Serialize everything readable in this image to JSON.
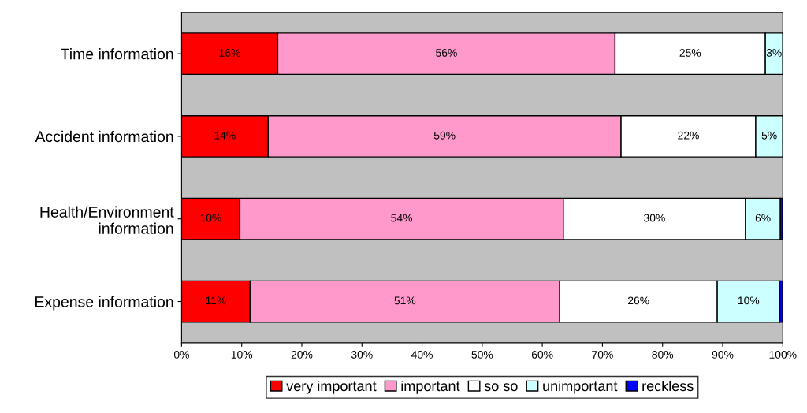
{
  "chart_data": {
    "type": "bar",
    "orientation": "horizontal",
    "stacked": true,
    "categories": [
      "Time information",
      "Accident information",
      "Health/Environment\ninformation",
      "Expense information"
    ],
    "series": [
      {
        "name": "very important",
        "color": "#ff0000",
        "values": [
          16.0,
          14.4,
          9.7,
          11.4
        ],
        "value_labels": [
          "16%",
          "14%",
          "10%",
          "11%"
        ]
      },
      {
        "name": "important",
        "color": "#ff99cc",
        "values": [
          56.1,
          58.7,
          53.8,
          51.5
        ],
        "value_labels": [
          "56%",
          "59%",
          "54%",
          "51%"
        ]
      },
      {
        "name": "so so",
        "color": "#ffffff",
        "values": [
          25.0,
          22.4,
          30.3,
          26.2
        ],
        "value_labels": [
          "25%",
          "22%",
          "30%",
          "26%"
        ]
      },
      {
        "name": "unimportant",
        "color": "#ccffff",
        "values": [
          2.9,
          4.5,
          5.8,
          10.4
        ],
        "value_labels": [
          "3%",
          "5%",
          "6%",
          "10%"
        ]
      },
      {
        "name": "reckless",
        "color": "#0000ff",
        "values": [
          null,
          null,
          0.4,
          0.5
        ],
        "value_labels": [
          null,
          null,
          null,
          null
        ]
      }
    ],
    "xlim": [
      0,
      100
    ],
    "xticks": [
      {
        "value": 0,
        "label": "0%"
      },
      {
        "value": 10,
        "label": "10%"
      },
      {
        "value": 20,
        "label": "20%"
      },
      {
        "value": 30,
        "label": "30%"
      },
      {
        "value": 40,
        "label": "40%"
      },
      {
        "value": 50,
        "label": "50%"
      },
      {
        "value": 60,
        "label": "60%"
      },
      {
        "value": 70,
        "label": "70%"
      },
      {
        "value": 80,
        "label": "80%"
      },
      {
        "value": 90,
        "label": "90%"
      },
      {
        "value": 100,
        "label": "100%"
      }
    ],
    "grid": false,
    "legend": "bottom"
  }
}
